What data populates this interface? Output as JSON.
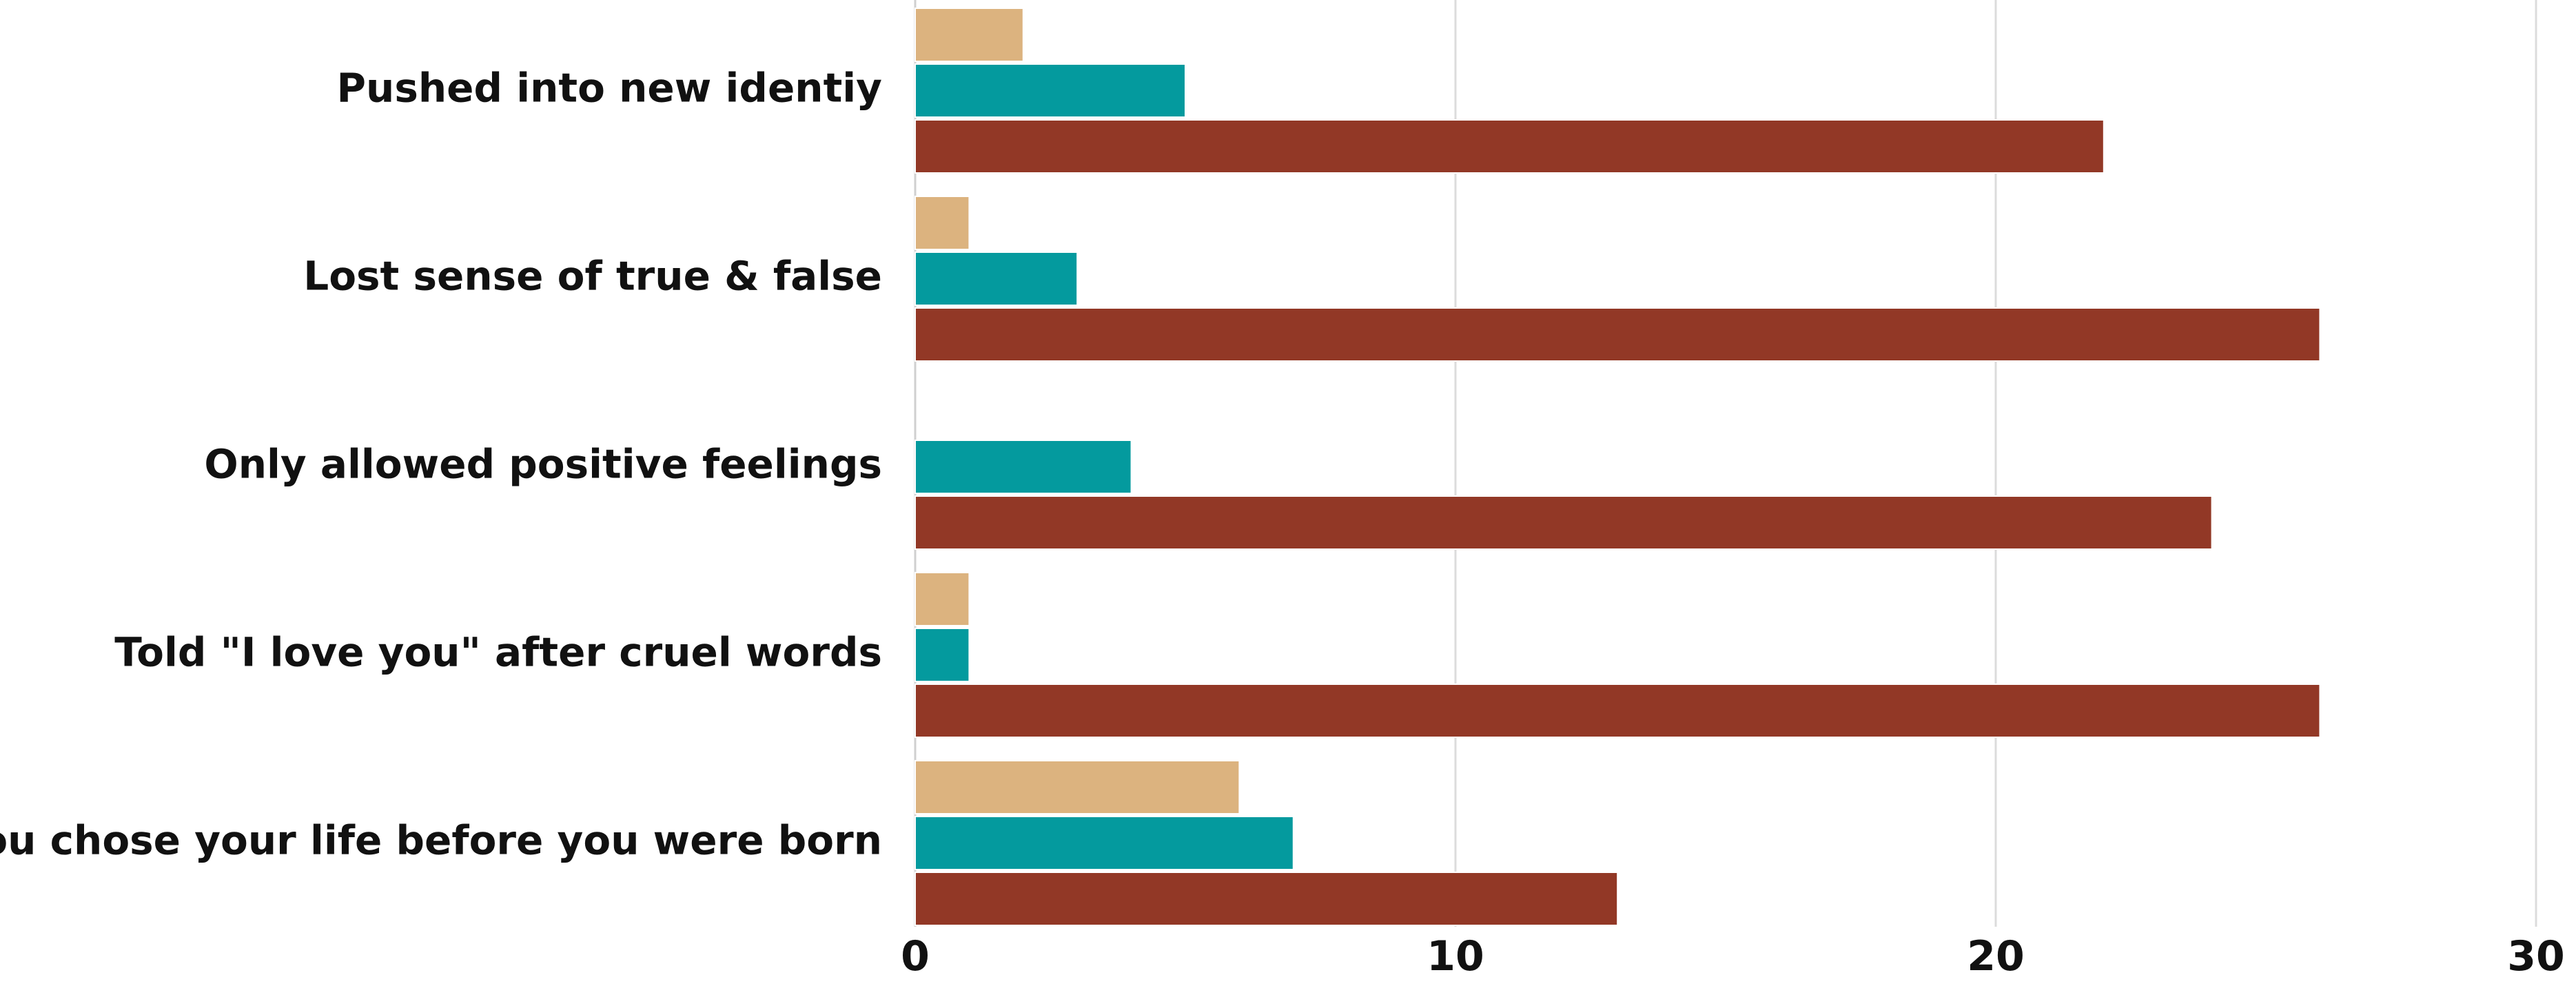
{
  "chart_data": {
    "type": "bar",
    "orientation": "horizontal",
    "categories": [
      "Pushed into new identiy",
      "Lost sense of true & false",
      "Only allowed positive feelings",
      "Told \"I love you\" after cruel words",
      "You chose your life before you were born"
    ],
    "series": [
      {
        "color": "#dcb37f",
        "values": [
          2,
          1,
          0,
          1,
          6
        ]
      },
      {
        "color": "#049a9e",
        "values": [
          5,
          3,
          4,
          1,
          7
        ]
      },
      {
        "color": "#923826",
        "values": [
          22,
          26,
          24,
          26,
          13
        ]
      }
    ],
    "xlim": [
      0,
      30
    ],
    "xticks": [
      "0",
      "10",
      "20",
      "30"
    ],
    "grid": true,
    "legend": "none",
    "title": "",
    "xlabel": "",
    "ylabel": ""
  }
}
